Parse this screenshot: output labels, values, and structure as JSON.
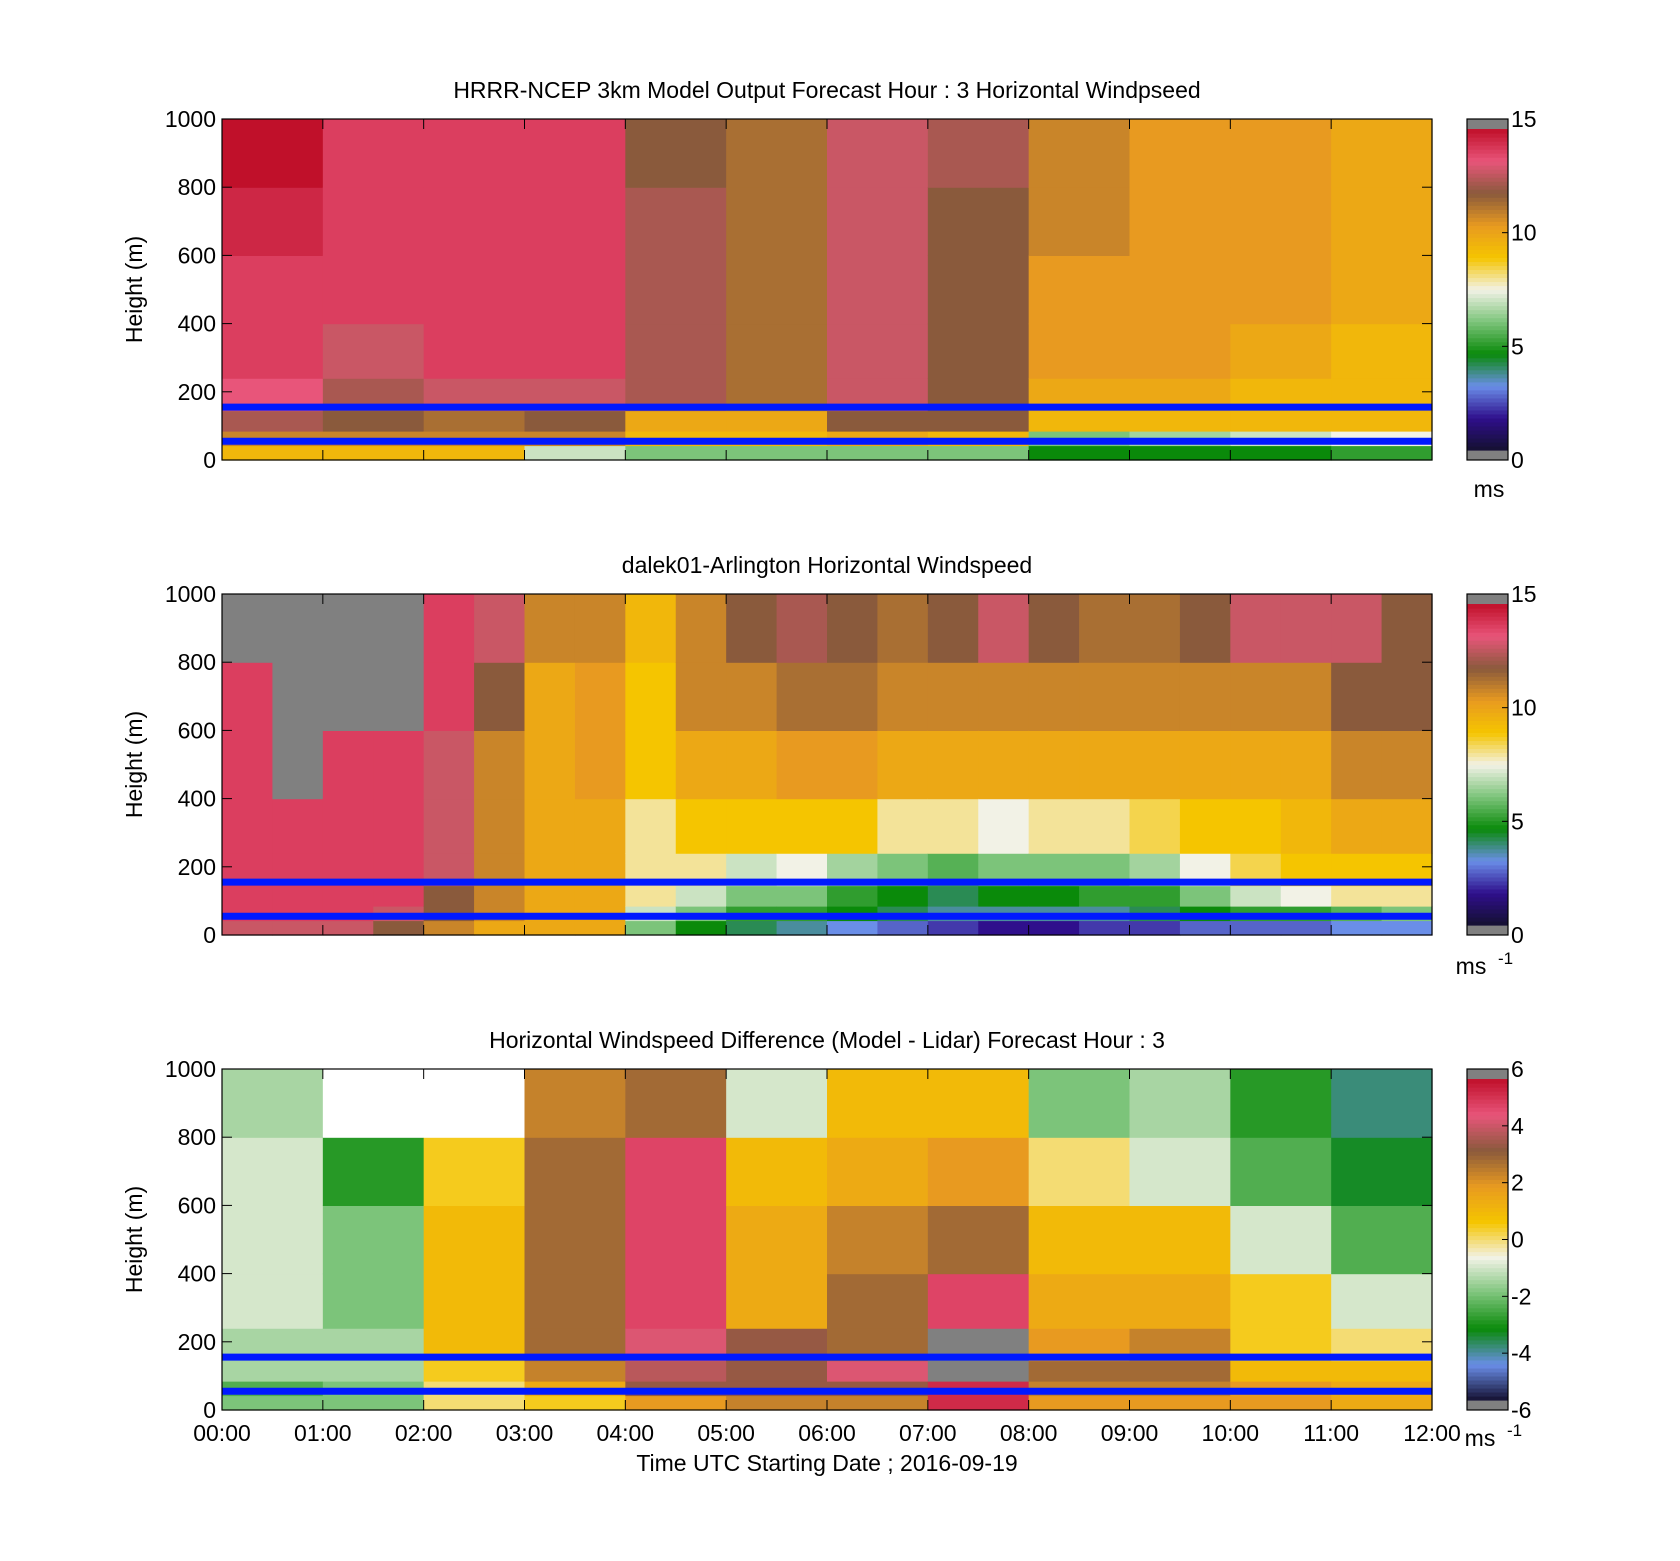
{
  "colors": {
    "overlay_line": "#0019ff",
    "nodata": "#808080",
    "speed_stops": [
      "#141030",
      "#2f0f8c",
      "#6a8ee8",
      "#0a8a0a",
      "#7cc47a",
      "#f2f2e6",
      "#f5c500",
      "#e89a20",
      "#8a5a3c",
      "#e8557a",
      "#c0102a"
    ],
    "diff_stops": [
      "#141030",
      "#6a8ee8",
      "#0a8a0a",
      "#7cc47a",
      "#f2f2e6",
      "#f5c500",
      "#e89a20",
      "#8a5a3c",
      "#e8557a",
      "#c0102a"
    ]
  },
  "xaxis": {
    "label": "Time UTC  Starting Date ; 2016-09-19",
    "ticks": [
      "00:00",
      "01:00",
      "02:00",
      "03:00",
      "04:00",
      "05:00",
      "06:00",
      "07:00",
      "08:00",
      "09:00",
      "10:00",
      "11:00",
      "12:00"
    ]
  },
  "chart_data": [
    {
      "type": "heatmap",
      "title": "HRRR-NCEP 3km Model Output   Forecast Hour : 3 Horizontal Windpseed",
      "ylabel": "Height (m)",
      "ylim": [
        0,
        1000
      ],
      "yticks": [
        "0",
        "200",
        "400",
        "600",
        "800",
        "1000"
      ],
      "xlim_hours": [
        0,
        12
      ],
      "colorbar": {
        "ticks": [
          "0",
          "5",
          "10",
          "15"
        ],
        "range": [
          0,
          15
        ],
        "unit": "ms"
      },
      "overlay_lines_m": [
        155,
        55
      ],
      "time_hours": [
        0,
        1,
        2,
        3,
        4,
        5,
        6,
        7,
        8,
        9,
        10,
        11
      ],
      "heights_m": [
        25,
        60,
        110,
        180,
        300,
        500,
        700,
        900
      ],
      "values": [
        [
          9.5,
          11,
          12.5,
          13.5,
          14,
          14,
          14.5,
          15
        ],
        [
          9.5,
          11,
          12,
          12.5,
          13,
          14,
          14,
          14
        ],
        [
          9.5,
          11,
          11.5,
          13,
          14,
          14,
          14,
          14
        ],
        [
          7,
          11,
          12,
          13,
          14,
          14,
          14,
          14
        ],
        [
          6,
          9.5,
          10,
          12.5,
          12.5,
          12.5,
          12.5,
          12
        ],
        [
          6,
          9.5,
          10,
          11.5,
          11.5,
          11.5,
          11.5,
          11.5
        ],
        [
          6,
          10,
          12,
          13,
          13,
          13,
          13,
          13
        ],
        [
          6,
          9.5,
          12,
          12,
          12,
          12,
          12,
          12.5
        ],
        [
          4.5,
          6,
          9.5,
          10,
          10.5,
          10.5,
          11,
          11
        ],
        [
          4.5,
          6.5,
          9.5,
          10,
          10.5,
          10.5,
          10.5,
          10.5
        ],
        [
          4.5,
          7,
          9.5,
          9.5,
          10,
          10.5,
          10.5,
          10.5
        ],
        [
          5,
          7.5,
          9.5,
          9.5,
          9.5,
          10,
          10,
          10
        ]
      ]
    },
    {
      "type": "heatmap",
      "title": "dalek01-Arlington  Horizontal Windspeed",
      "ylabel": "Height (m)",
      "ylim": [
        0,
        1000
      ],
      "yticks": [
        "0",
        "200",
        "400",
        "600",
        "800",
        "1000"
      ],
      "xlim_hours": [
        0,
        12
      ],
      "colorbar": {
        "ticks": [
          "0",
          "5",
          "10",
          "15"
        ],
        "range": [
          0,
          15
        ],
        "unit": "ms",
        "unit_exp": "-1"
      },
      "overlay_lines_m": [
        155,
        55
      ],
      "time_hours": [
        0,
        0.5,
        1,
        1.5,
        2,
        2.5,
        3,
        3.5,
        4,
        4.5,
        5,
        5.5,
        6,
        6.5,
        7,
        7.5,
        8,
        8.5,
        9,
        9.5,
        10,
        10.5,
        11,
        11.5
      ],
      "heights_m": [
        25,
        60,
        110,
        180,
        300,
        500,
        700,
        900
      ],
      "nodata_value": -1,
      "values": [
        [
          13,
          14,
          14,
          14,
          14,
          14,
          14,
          -1
        ],
        [
          13,
          14,
          14,
          14,
          14,
          -1,
          -1,
          -1
        ],
        [
          13,
          14,
          14,
          14,
          14,
          14,
          -1,
          -1
        ],
        [
          12,
          13,
          14,
          14,
          14,
          14,
          -1,
          -1
        ],
        [
          11,
          12,
          12,
          13,
          13,
          13,
          14,
          14
        ],
        [
          10,
          11,
          11,
          11,
          11,
          11,
          12,
          13
        ],
        [
          10,
          10,
          10,
          10,
          10,
          10,
          10,
          11
        ],
        [
          10,
          10,
          10,
          10,
          10,
          10.5,
          10.5,
          11
        ],
        [
          6,
          7,
          8,
          8,
          8,
          9,
          9,
          9.5
        ],
        [
          4.5,
          6,
          7,
          8,
          9,
          10,
          11,
          11
        ],
        [
          4,
          5,
          6,
          7,
          9,
          10,
          11,
          12
        ],
        [
          3.5,
          5,
          6,
          7.5,
          9,
          10.5,
          11.5,
          12.5
        ],
        [
          3,
          4.5,
          5,
          6.5,
          9,
          10.5,
          11.5,
          12
        ],
        [
          2.5,
          4,
          4.5,
          6,
          8,
          10,
          11,
          11.5
        ],
        [
          2,
          3.5,
          4,
          5.5,
          8,
          10,
          11,
          12
        ],
        [
          1.5,
          3.5,
          4.5,
          6,
          7.5,
          10,
          11,
          13
        ],
        [
          1.5,
          3.5,
          4.5,
          6,
          8,
          10,
          11,
          12
        ],
        [
          2,
          3.5,
          5,
          6,
          8,
          10,
          11,
          11.5
        ],
        [
          2,
          4,
          5,
          6.5,
          8.5,
          10,
          11,
          11.5
        ],
        [
          2.5,
          4.5,
          6,
          7.5,
          9,
          10,
          11,
          12
        ],
        [
          2.5,
          5,
          7,
          8.5,
          9,
          10,
          11,
          13
        ],
        [
          2.5,
          5,
          7.5,
          9,
          9.5,
          10,
          11,
          13
        ],
        [
          3,
          5.5,
          8,
          9,
          10,
          11,
          12,
          13
        ],
        [
          3,
          6,
          8,
          9,
          10,
          11,
          12,
          12
        ]
      ]
    },
    {
      "type": "heatmap",
      "title": "Horizontal Windspeed Difference (Model - Lidar) Forecast Hour : 3",
      "ylabel": "Height (m)",
      "ylim": [
        0,
        1000
      ],
      "yticks": [
        "0",
        "200",
        "400",
        "600",
        "800",
        "1000"
      ],
      "xlim_hours": [
        0,
        12
      ],
      "colorbar": {
        "ticks": [
          "-6",
          "-4",
          "-2",
          "0",
          "2",
          "4",
          "6"
        ],
        "range": [
          -6,
          6
        ],
        "unit": "ms",
        "unit_exp": "-1"
      },
      "overlay_lines_m": [
        155,
        55
      ],
      "time_hours": [
        0,
        1,
        2,
        3,
        4,
        5,
        6,
        7,
        8,
        9,
        10,
        11
      ],
      "heights_m": [
        25,
        60,
        110,
        180,
        300,
        500,
        700,
        900
      ],
      "nodata_value": -99,
      "values": [
        [
          -2,
          -2.5,
          -1.5,
          -1.5,
          -1,
          -1,
          -1,
          -1.5
        ],
        [
          -2,
          -2,
          -1.5,
          -1.5,
          -2,
          -2,
          -3,
          -99
        ],
        [
          0,
          0,
          0.5,
          1,
          1,
          1,
          0.5,
          -99
        ],
        [
          0.5,
          1.5,
          2.5,
          3,
          3,
          3,
          3,
          2.5
        ],
        [
          2,
          3.5,
          4,
          4.5,
          5,
          5,
          5,
          3
        ],
        [
          2.5,
          3.5,
          3.5,
          3.5,
          1.5,
          1.5,
          1,
          -1
        ],
        [
          2.5,
          3.5,
          4.5,
          3,
          3,
          2.5,
          1.5,
          1
        ],
        [
          5.5,
          5.5,
          -99,
          -99,
          5,
          3,
          2,
          1
        ],
        [
          2,
          2.5,
          3,
          2,
          1.5,
          1,
          0,
          -2
        ],
        [
          2,
          2.5,
          3,
          2.5,
          1.5,
          1,
          -1,
          -1.5
        ],
        [
          2,
          2,
          1,
          0.5,
          0.5,
          -1,
          -2.5,
          -3
        ],
        [
          1.5,
          1.5,
          1,
          0,
          -1,
          -2.5,
          -3.5,
          -4
        ]
      ]
    }
  ]
}
